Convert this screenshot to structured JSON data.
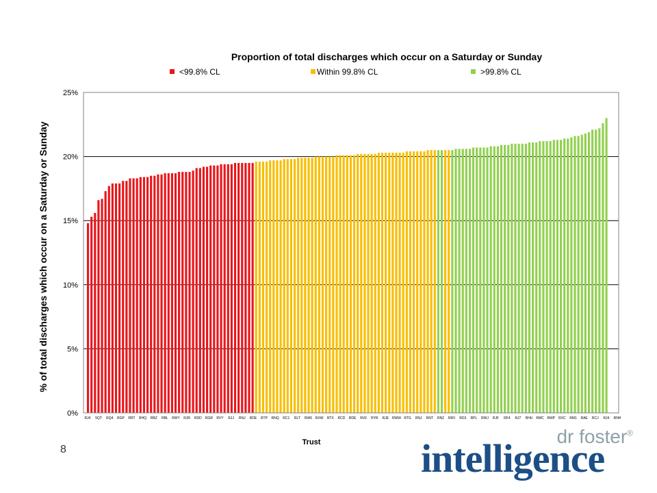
{
  "slide_number": "8",
  "logo": {
    "top_text": "dr foster",
    "registered": "®",
    "main_text": "intelligence"
  },
  "colors": {
    "red": "#e8161b",
    "amber": "#f8be00",
    "green": "#92d050"
  },
  "chart_data": {
    "type": "bar",
    "title": "Proportion of total discharges which occur on a Saturday or Sunday",
    "xlabel": "Trust",
    "ylabel": "% of total discharges which occur on a Saturday or Sunday",
    "ylim": [
      0,
      25
    ],
    "yticks": [
      "0%",
      "5%",
      "10%",
      "15%",
      "20%",
      "25%"
    ],
    "grid": true,
    "legend_position": "top",
    "legend": [
      {
        "name": "<99.8% CL",
        "color": "#e8161b"
      },
      {
        "name": "Within 99.8% CL",
        "color": "#f8be00"
      },
      {
        "name": ">99.8% CL",
        "color": "#92d050"
      }
    ],
    "category_labels": [
      "RJ4",
      "5QT",
      "RQ4",
      "RGP",
      "RRT",
      "RHQ",
      "RBZ",
      "RBL",
      "RWY",
      "RJR",
      "RDD",
      "RGR",
      "RVY",
      "RJJ",
      "RNJ",
      "RDE",
      "RTP",
      "RNQ",
      "RC1",
      "RLT",
      "RW6",
      "RXW",
      "RTX",
      "RCD",
      "RDE",
      "RV6",
      "RYR",
      "RJE",
      "RWW",
      "RTG",
      "RNJ",
      "RNT",
      "RN2",
      "RRV",
      "RD3",
      "RPL",
      "RWJ",
      "RJF",
      "RF4",
      "RJ7",
      "RHU",
      "RMC",
      "RWP",
      "RXC",
      "RM1",
      "RAE",
      "RCJ",
      "RJ4",
      "RNH"
    ],
    "series": [
      {
        "name": "<99.8% CL",
        "values": [
          14.8,
          15.3,
          15.6,
          16.6,
          16.7,
          17.3,
          17.7,
          17.9,
          17.9,
          17.9,
          18.1,
          18.1,
          18.3,
          18.3,
          18.3,
          18.4,
          18.4,
          18.4,
          18.5,
          18.5,
          18.6,
          18.6,
          18.7,
          18.7,
          18.7,
          18.7,
          18.8,
          18.8,
          18.8,
          18.8,
          18.9,
          19.1,
          19.1,
          19.2,
          19.2,
          19.3,
          19.3,
          19.3,
          19.4,
          19.4,
          19.4,
          19.4,
          19.5,
          19.5,
          19.5,
          19.5,
          19.5,
          19.5
        ]
      },
      {
        "name": "Within 99.8% CL",
        "values": [
          19.6,
          19.6,
          19.6,
          19.6,
          19.7,
          19.7,
          19.7,
          19.7,
          19.8,
          19.8,
          19.8,
          19.8,
          19.9,
          19.9,
          19.9,
          19.9,
          19.9,
          20.0,
          20.0,
          20.0,
          20.0,
          20.0,
          20.0,
          20.1,
          20.1,
          20.1,
          20.1,
          20.1,
          20.1,
          20.2,
          20.2,
          20.2,
          20.2,
          20.2,
          20.2,
          20.3,
          20.3,
          20.3,
          20.3,
          20.3,
          20.3,
          20.3,
          20.3,
          20.4,
          20.4,
          20.4,
          20.4,
          20.4,
          20.4,
          20.5,
          20.5,
          20.5,
          20.5,
          20.5
        ]
      },
      {
        "name": ">99.8% CL",
        "values": [
          20.5,
          20.5,
          20.5,
          20.6,
          20.6,
          20.6,
          20.6,
          20.6,
          20.7,
          20.7,
          20.7,
          20.7,
          20.7,
          20.8,
          20.8,
          20.8,
          20.9,
          20.9,
          20.9,
          21.0,
          21.0,
          21.0,
          21.0,
          21.0,
          21.1,
          21.1,
          21.1,
          21.2,
          21.2,
          21.2,
          21.2,
          21.3,
          21.3,
          21.3,
          21.4,
          21.4,
          21.5,
          21.6,
          21.6,
          21.7,
          21.8,
          21.9,
          22.1,
          22.1,
          22.2,
          22.6,
          23.0
        ]
      }
    ],
    "bar_order": [
      0,
      0,
      0,
      0,
      0,
      0,
      0,
      0,
      0,
      0,
      0,
      0,
      0,
      0,
      0,
      0,
      0,
      0,
      0,
      0,
      0,
      0,
      0,
      0,
      0,
      0,
      0,
      0,
      0,
      0,
      0,
      0,
      0,
      0,
      0,
      0,
      0,
      0,
      0,
      0,
      0,
      0,
      0,
      0,
      0,
      0,
      0,
      0,
      1,
      1,
      1,
      1,
      1,
      1,
      1,
      1,
      1,
      1,
      1,
      1,
      1,
      1,
      1,
      1,
      1,
      1,
      1,
      1,
      1,
      1,
      1,
      1,
      1,
      1,
      1,
      1,
      1,
      1,
      1,
      1,
      1,
      1,
      1,
      1,
      1,
      1,
      1,
      1,
      1,
      1,
      1,
      1,
      1,
      1,
      1,
      1,
      1,
      1,
      1,
      1,
      2,
      2,
      1,
      1,
      2,
      2,
      2,
      2,
      2,
      2,
      2,
      2,
      2,
      2,
      2,
      2,
      2,
      2,
      2,
      2,
      2,
      2,
      2,
      2,
      2,
      2,
      2,
      2,
      2,
      2,
      2,
      2,
      2,
      2,
      2,
      2,
      2,
      2,
      2,
      2,
      2,
      2,
      2,
      2,
      2,
      2,
      2,
      2,
      2,
      2,
      2,
      2
    ]
  }
}
